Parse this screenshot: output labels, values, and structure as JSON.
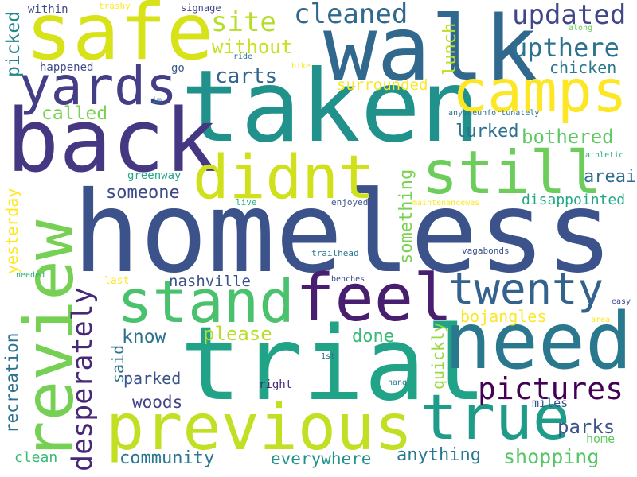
{
  "words": [
    {
      "text": "homeless",
      "color": "#3b528b"
    },
    {
      "text": "taken",
      "color": "#21918c"
    },
    {
      "text": "walk",
      "color": "#31688e"
    },
    {
      "text": "back",
      "color": "#453781"
    },
    {
      "text": "safe",
      "color": "#d8e219"
    },
    {
      "text": "trial",
      "color": "#20a386"
    },
    {
      "text": "review",
      "color": "#75d054"
    },
    {
      "text": "need",
      "color": "#2a788e"
    },
    {
      "text": "previous",
      "color": "#c2df23"
    },
    {
      "text": "true",
      "color": "#1e9c89"
    },
    {
      "text": "camps",
      "color": "#fde725"
    },
    {
      "text": "still",
      "color": "#6ccd5a"
    },
    {
      "text": "didnt",
      "color": "#d0e11c"
    },
    {
      "text": "feel",
      "color": "#481f70"
    },
    {
      "text": "stand",
      "color": "#4ac16d"
    },
    {
      "text": "twenty",
      "color": "#33638d"
    },
    {
      "text": "yards",
      "color": "#433e85"
    },
    {
      "text": "desperately",
      "color": "#482878"
    },
    {
      "text": "pictures",
      "color": "#440154"
    },
    {
      "text": "updated",
      "color": "#404688"
    },
    {
      "text": "upthere",
      "color": "#2c728e"
    },
    {
      "text": "cleaned",
      "color": "#31688e"
    },
    {
      "text": "site",
      "color": "#b5de2b"
    },
    {
      "text": "without",
      "color": "#c8e020"
    },
    {
      "text": "carts",
      "color": "#32648e"
    },
    {
      "text": "picked",
      "color": "#25858e"
    },
    {
      "text": "called",
      "color": "#7ad151"
    },
    {
      "text": "lunch",
      "color": "#bddf26"
    },
    {
      "text": "chicken",
      "color": "#2a788e"
    },
    {
      "text": "surrounded",
      "color": "#fde725"
    },
    {
      "text": "bothered",
      "color": "#5ec962"
    },
    {
      "text": "lurked",
      "color": "#2d708e"
    },
    {
      "text": "areai",
      "color": "#2f6c8e"
    },
    {
      "text": "someone",
      "color": "#3e4989"
    },
    {
      "text": "something",
      "color": "#7ad151"
    },
    {
      "text": "disappointed",
      "color": "#22a785"
    },
    {
      "text": "yesterday",
      "color": "#fde725"
    },
    {
      "text": "recreation",
      "color": "#2c728e"
    },
    {
      "text": "nashville",
      "color": "#3b528b"
    },
    {
      "text": "know",
      "color": "#2d708e"
    },
    {
      "text": "please",
      "color": "#b8de29"
    },
    {
      "text": "done",
      "color": "#38b977"
    },
    {
      "text": "bojangles",
      "color": "#fde725"
    },
    {
      "text": "quickly",
      "color": "#98d83e"
    },
    {
      "text": "said",
      "color": "#2d708e"
    },
    {
      "text": "parked",
      "color": "#3b528b"
    },
    {
      "text": "woods",
      "color": "#414487"
    },
    {
      "text": "parks",
      "color": "#3b528b"
    },
    {
      "text": "miles",
      "color": "#39568c"
    },
    {
      "text": "home",
      "color": "#5ec962"
    },
    {
      "text": "clean",
      "color": "#38b977"
    },
    {
      "text": "community",
      "color": "#2a788e"
    },
    {
      "text": "everywhere",
      "color": "#21918c"
    },
    {
      "text": "anything",
      "color": "#2a788e"
    },
    {
      "text": "shopping",
      "color": "#56c667"
    },
    {
      "text": "within",
      "color": "#3e4a89"
    },
    {
      "text": "trashy",
      "color": "#fde725"
    },
    {
      "text": "signage",
      "color": "#414487"
    },
    {
      "text": "along",
      "color": "#65cb5e"
    },
    {
      "text": "ride",
      "color": "#2c728e"
    },
    {
      "text": "bike",
      "color": "#fde725"
    },
    {
      "text": "go",
      "color": "#38598c"
    },
    {
      "text": "happened",
      "color": "#3e4a89"
    },
    {
      "text": "im",
      "color": "#25848e"
    },
    {
      "text": "greenway",
      "color": "#22a884"
    },
    {
      "text": "live",
      "color": "#29af7f"
    },
    {
      "text": "enjoyed",
      "color": "#3b528b"
    },
    {
      "text": "maintenancewas",
      "color": "#fde725"
    },
    {
      "text": "anyoneunfortunately",
      "color": "#2c728e"
    },
    {
      "text": "athletic",
      "color": "#29af7f"
    },
    {
      "text": "trailhead",
      "color": "#2a788e"
    },
    {
      "text": "vagabonds",
      "color": "#3b528b"
    },
    {
      "text": "needed",
      "color": "#29af7f"
    },
    {
      "text": "last",
      "color": "#fde725"
    },
    {
      "text": "benches",
      "color": "#3e4a89"
    },
    {
      "text": "easy",
      "color": "#3e4a89"
    },
    {
      "text": "area",
      "color": "#fde725"
    },
    {
      "text": "1st",
      "color": "#2d708e"
    },
    {
      "text": "right",
      "color": "#482878"
    },
    {
      "text": "hang",
      "color": "#2a788e"
    }
  ]
}
